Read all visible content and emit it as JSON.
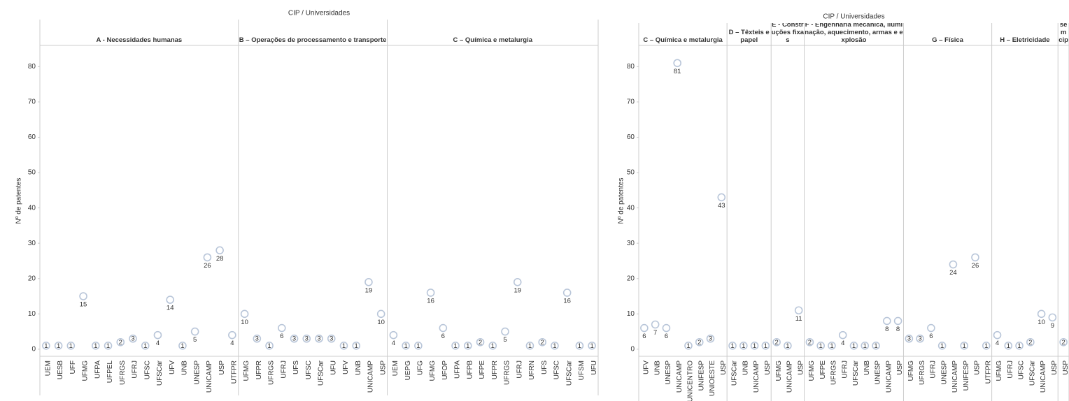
{
  "chart_data": [
    {
      "type": "dot",
      "title": "CIP / Universidades",
      "y_label": "Nº de patentes",
      "ylim": [
        -2,
        86
      ],
      "yticks": [
        0,
        10,
        20,
        30,
        40,
        50,
        60,
        70,
        80
      ],
      "facets": [
        {
          "name": "A - Necessidades humanas",
          "categories": [
            "UEM",
            "UESB",
            "UFF",
            "UFMG",
            "UFPA",
            "UFPEL",
            "UFRGS",
            "UFRJ",
            "UFSC",
            "UFSCar",
            "UFV",
            "UNB",
            "UNESP",
            "UNICAMP",
            "USP",
            "UTFPR"
          ],
          "values": [
            1,
            1,
            1,
            15,
            1,
            1,
            2,
            3,
            1,
            4,
            14,
            1,
            5,
            26,
            28,
            4
          ]
        },
        {
          "name": "B – Operações de processamento e transporte",
          "categories": [
            "UFMG",
            "UFPR",
            "UFRGS",
            "UFRJ",
            "UFS",
            "UFSC",
            "UFSCar",
            "UFU",
            "UFV",
            "UNB",
            "UNICAMP",
            "USP"
          ],
          "values": [
            10,
            3,
            1,
            6,
            3,
            3,
            3,
            3,
            1,
            1,
            19,
            10
          ]
        },
        {
          "name": "C – Química e metalurgia",
          "categories": [
            "UEM",
            "UEPG",
            "UFG",
            "UFMG",
            "UFOP",
            "UFPA",
            "UFPB",
            "UFPE",
            "UFPR",
            "UFRGS",
            "UFRJ",
            "UFRN",
            "UFS",
            "UFSC",
            "UFSCar",
            "UFSM",
            "UFU"
          ],
          "values": [
            4,
            1,
            1,
            16,
            6,
            1,
            1,
            2,
            1,
            5,
            19,
            1,
            2,
            1,
            16,
            1,
            1
          ]
        }
      ]
    },
    {
      "type": "dot",
      "title": "CIP / Universidades",
      "y_label": "Nº de patentes",
      "ylim": [
        -2,
        86
      ],
      "yticks": [
        0,
        10,
        20,
        30,
        40,
        50,
        60,
        70,
        80
      ],
      "facets": [
        {
          "name": "C – Química e metalurgia",
          "categories": [
            "UFV",
            "UNB",
            "UNESP",
            "UNICAMP",
            "UNICENTRO",
            "UNIFESP",
            "UNIOESTE",
            "USP"
          ],
          "values": [
            6,
            7,
            6,
            81,
            1,
            2,
            3,
            43
          ]
        },
        {
          "name": "D – Têxteis e papel",
          "categories": [
            "UFSCar",
            "UNB",
            "UNICAMP",
            "USP"
          ],
          "values": [
            1,
            1,
            1,
            1
          ]
        },
        {
          "name": "E - Construções fixas",
          "categories": [
            "UFMG",
            "UNICAMP",
            "USP"
          ],
          "values": [
            2,
            1,
            11
          ]
        },
        {
          "name": "F - Engenharia mecânica, iluminação, aquecimento, armas e explosão",
          "categories": [
            "UFMG",
            "UFPE",
            "UFRGS",
            "UFRJ",
            "UFSCar",
            "UNB",
            "UNESP",
            "UNICAMP",
            "USP"
          ],
          "values": [
            2,
            1,
            1,
            4,
            1,
            1,
            1,
            8,
            8
          ]
        },
        {
          "name": "G – Física",
          "categories": [
            "UFMG",
            "UFRGS",
            "UFRJ",
            "UNESP",
            "UNICAMP",
            "UNIFESP",
            "USP",
            "UTFPR"
          ],
          "values": [
            3,
            3,
            6,
            1,
            24,
            1,
            26,
            1
          ]
        },
        {
          "name": "H – Eletricidade",
          "categories": [
            "UFMG",
            "UFRJ",
            "UFSC",
            "UFSCar",
            "UNICAMP",
            "USP"
          ],
          "values": [
            4,
            1,
            1,
            2,
            10,
            9
          ]
        },
        {
          "name": "sem cip",
          "categories": [
            "USP"
          ],
          "values": [
            2
          ]
        }
      ]
    }
  ]
}
